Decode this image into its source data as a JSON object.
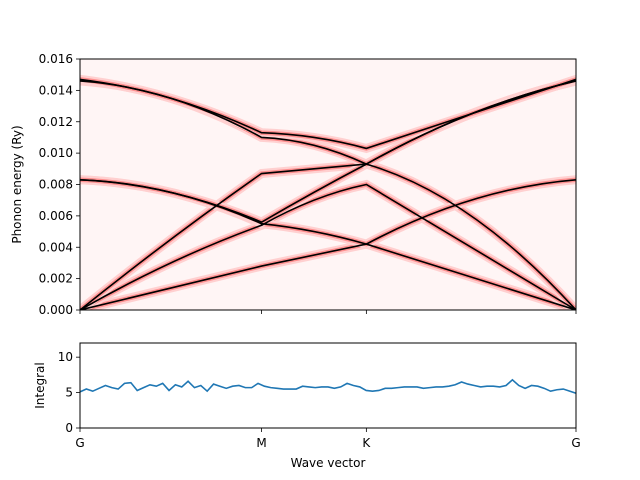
{
  "chart_data": [
    {
      "type": "line",
      "title": "",
      "xlabel": "",
      "ylabel": "Phonon energy (Ry)",
      "ylim": [
        0,
        0.016
      ],
      "yticks": [
        0.0,
        0.002,
        0.004,
        0.006,
        0.008,
        0.01,
        0.012,
        0.014,
        0.016
      ],
      "ytick_labels": [
        "0.000",
        "0.002",
        "0.004",
        "0.006",
        "0.008",
        "0.010",
        "0.012",
        "0.014",
        "0.016"
      ],
      "x_path": [
        "G",
        "M",
        "K",
        "G"
      ],
      "x_segment_lengths": [
        0.5774,
        0.3333,
        0.6667
      ],
      "background": "red spectral-function heatmap (colormap white to red) under the black band lines",
      "line_color": "#000000",
      "series": [
        {
          "id": "lower-1",
          "segments": [
            [
              0.0,
              0.0014,
              0.0028
            ],
            [
              0.0028,
              0.0035,
              0.0042
            ],
            [
              0.0042,
              0.0021,
              0.0
            ]
          ]
        },
        {
          "id": "lower-2",
          "segments": [
            [
              0.0,
              0.003,
              0.0054
            ],
            [
              0.0054,
              0.007,
              0.008
            ],
            [
              0.008,
              0.004,
              0.0
            ]
          ]
        },
        {
          "id": "lower-3",
          "segments": [
            [
              0.0,
              0.0045,
              0.0087
            ],
            [
              0.0087,
              0.009,
              0.0093
            ],
            [
              0.0093,
              0.006,
              0.0
            ]
          ]
        },
        {
          "id": "optical-1",
          "segments": [
            [
              0.0083,
              0.0075,
              0.0055
            ],
            [
              0.0055,
              0.005,
              0.0042
            ],
            [
              0.0042,
              0.007,
              0.0083
            ]
          ]
        },
        {
          "id": "optical-2",
          "segments": [
            [
              0.0083,
              0.0075,
              0.0056
            ],
            [
              0.0056,
              0.0075,
              0.0093
            ],
            [
              0.0093,
              0.0125,
              0.0146
            ]
          ]
        },
        {
          "id": "optical-3",
          "segments": [
            [
              0.0146,
              0.0135,
              0.011
            ],
            [
              0.011,
              0.0105,
              0.0093
            ],
            [
              0.0093,
              0.0125,
              0.0146
            ]
          ]
        },
        {
          "id": "optical-4",
          "segments": [
            [
              0.0147,
              0.0135,
              0.0113
            ],
            [
              0.0113,
              0.011,
              0.0103
            ],
            [
              0.0103,
              0.0125,
              0.0147
            ]
          ]
        }
      ]
    },
    {
      "type": "line",
      "title": "",
      "xlabel": "Wave vector",
      "ylabel": "Integral",
      "ylim": [
        0,
        12
      ],
      "yticks": [
        0,
        5,
        10
      ],
      "ytick_labels": [
        "0",
        "5",
        "10"
      ],
      "xtick_labels": [
        "G",
        "M",
        "K",
        "G"
      ],
      "line_color": "#1f77b4",
      "values": [
        5.1,
        5.5,
        5.2,
        5.6,
        6.0,
        5.7,
        5.5,
        6.3,
        6.4,
        5.3,
        5.7,
        6.1,
        5.9,
        6.3,
        5.3,
        6.1,
        5.8,
        6.6,
        5.7,
        6.0,
        5.2,
        6.2,
        5.9,
        5.6,
        5.9,
        6.0,
        5.7,
        5.7,
        6.3,
        5.9,
        5.7,
        5.6,
        5.5,
        5.5,
        5.5,
        5.9,
        5.8,
        5.7,
        5.8,
        5.8,
        5.6,
        5.8,
        6.3,
        6.0,
        5.8,
        5.3,
        5.2,
        5.3,
        5.6,
        5.6,
        5.7,
        5.8,
        5.8,
        5.8,
        5.6,
        5.7,
        5.8,
        5.8,
        5.9,
        6.1,
        6.5,
        6.2,
        6.0,
        5.8,
        5.9,
        5.9,
        5.8,
        6.0,
        6.8,
        6.0,
        5.6,
        6.0,
        5.9,
        5.6,
        5.2,
        5.4,
        5.5,
        5.2,
        4.9
      ]
    }
  ]
}
